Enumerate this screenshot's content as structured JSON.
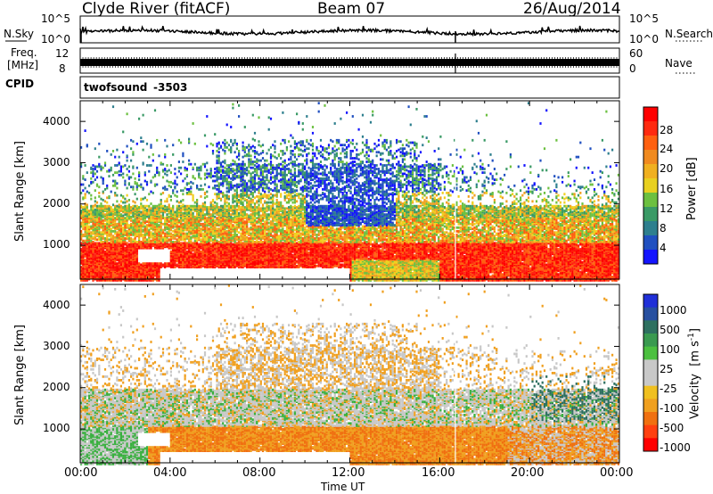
{
  "header": {
    "station": "Clyde River (fitACF)",
    "beam": "Beam 07",
    "date": "26/Aug/2014"
  },
  "chart_data": [
    {
      "type": "line",
      "panel": "noise",
      "left_label": "N.Sky",
      "right_label": "N.Search",
      "left_ticks": [
        "10^5",
        "10^0"
      ],
      "right_ticks": [
        "10^5",
        "10^0"
      ],
      "scale": "log",
      "description_values": {
        "typical": "10^4"
      }
    },
    {
      "type": "line",
      "panel": "frequency",
      "left_label_top": "Freq.",
      "left_label_bottom": "[MHz]",
      "left_ticks": [
        "12",
        "8"
      ],
      "ylim": [
        8,
        12
      ],
      "right_label": "Nave",
      "right_ticks": [
        "60",
        "0"
      ],
      "right_ylim": [
        0,
        60
      ],
      "value": 10.5
    },
    {
      "type": "table",
      "panel": "cpid",
      "label": "CPID",
      "program": "twofsound",
      "program_id": "-3503"
    },
    {
      "type": "heatmap",
      "panel": "power",
      "ylabel": "Slant Range [km]",
      "ylim": [
        180,
        4500
      ],
      "y_ticks": [
        "1000",
        "2000",
        "3000",
        "4000"
      ],
      "xlim": [
        0,
        24
      ],
      "colorbar": {
        "label": "Power [dB]",
        "ticks": [
          "4",
          "8",
          "12",
          "16",
          "20",
          "24",
          "28"
        ],
        "range": [
          0,
          30
        ]
      }
    },
    {
      "type": "heatmap",
      "panel": "velocity",
      "ylabel": "Slant Range [km]",
      "ylim": [
        180,
        4500
      ],
      "y_ticks": [
        "1000",
        "2000",
        "3000",
        "4000"
      ],
      "xlim": [
        0,
        24
      ],
      "xlabel": "Time UT",
      "x_ticks": [
        "00:00",
        "04:00",
        "08:00",
        "12:00",
        "16:00",
        "20:00",
        "00:00"
      ],
      "colorbar": {
        "label_main": "Velocity",
        "label_unit": "[m s",
        "label_exp": "-1",
        "label_close": "]",
        "ticks": [
          "1000",
          "500",
          "100",
          "25",
          "-25",
          "-100",
          "-500",
          "-1000"
        ]
      }
    }
  ]
}
